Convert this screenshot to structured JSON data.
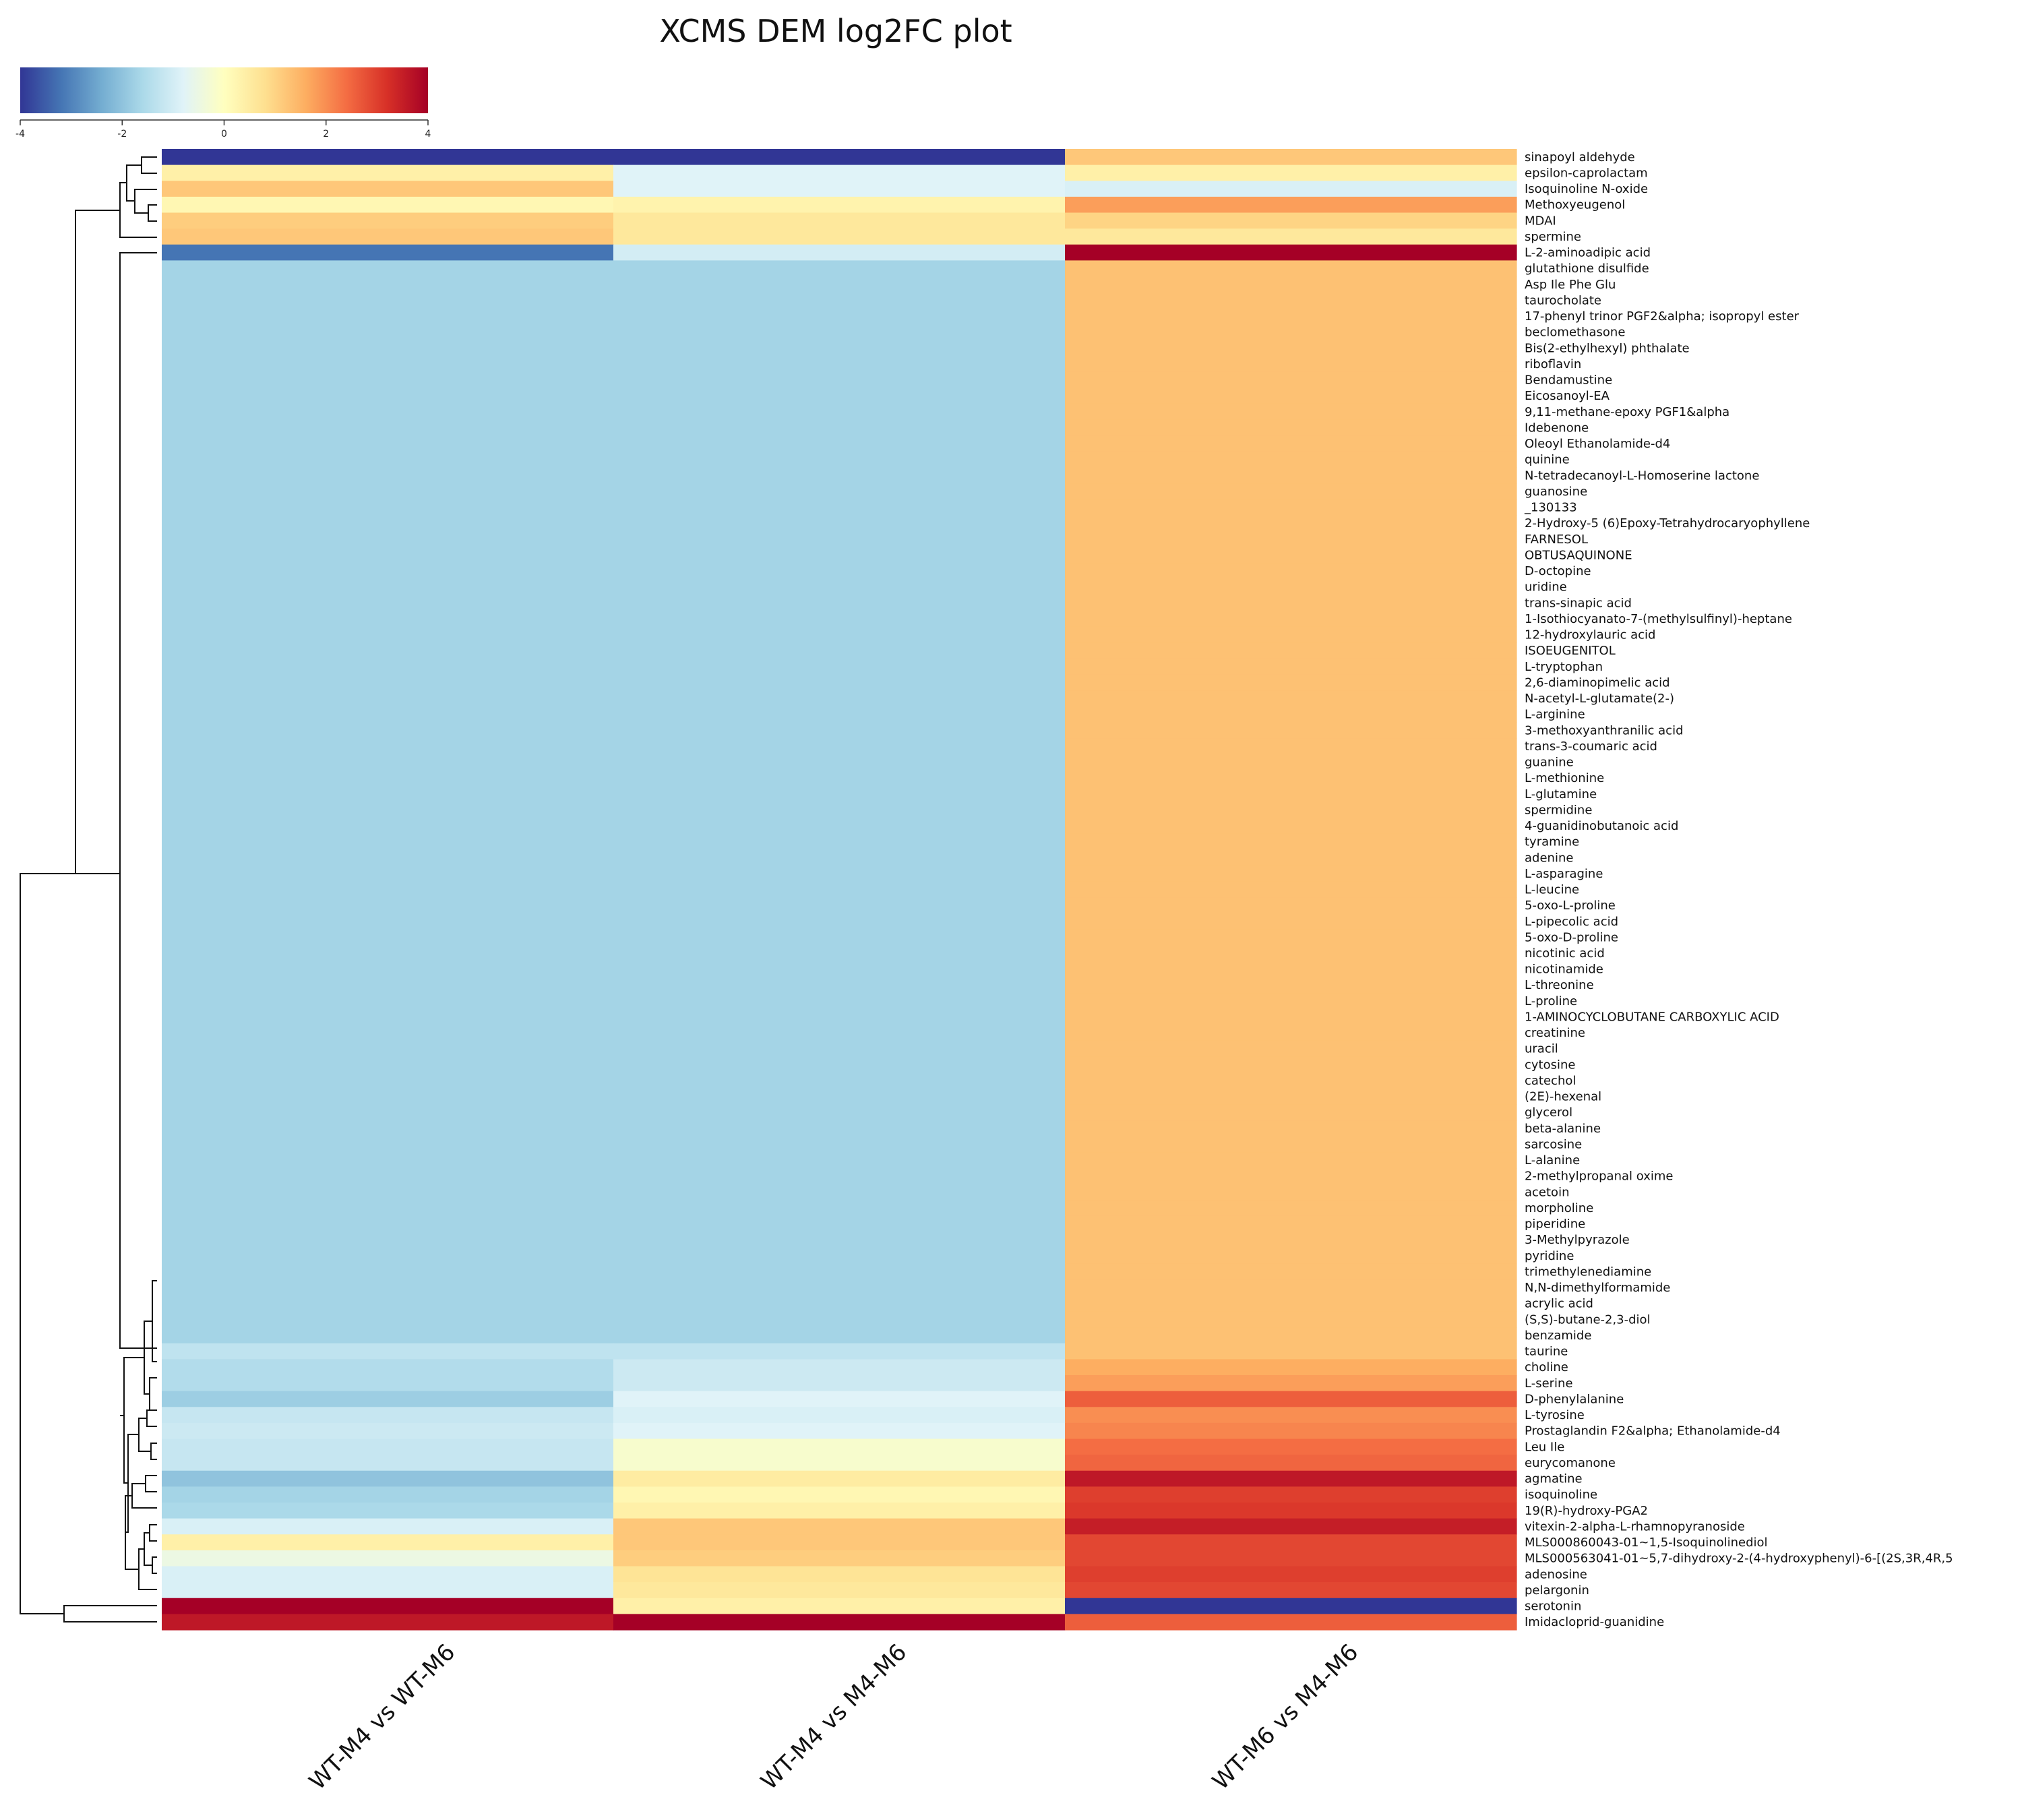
{
  "chart_data": {
    "type": "heatmap",
    "title": "XCMS DEM log2FC plot",
    "columns": [
      "WT-M4 vs WT-M6",
      "WT-M4 vs M4-M6",
      "WT-M6 vs M4-M6"
    ],
    "color_scale": {
      "min": -4,
      "max": 4,
      "ticks": [
        -4,
        -2,
        0,
        2,
        4
      ],
      "tick_labels": [
        "-4",
        "-2",
        "0",
        "2",
        "4"
      ],
      "colors": [
        "#313695",
        "#4575b4",
        "#74add1",
        "#abd9e9",
        "#e0f3f8",
        "#ffffbf",
        "#fee090",
        "#fdae61",
        "#f46d43",
        "#d73027",
        "#a50026"
      ]
    },
    "rows": [
      {
        "name": "sinapoyl aldehyde",
        "values": [
          -4,
          -4,
          1.2
        ]
      },
      {
        "name": "epsilon-caprolactam",
        "values": [
          0.4,
          -0.8,
          0.4
        ]
      },
      {
        "name": "Isoquinoline N-oxide",
        "values": [
          1.2,
          -0.8,
          -0.9
        ]
      },
      {
        "name": "Methoxyeugenol",
        "values": [
          0.2,
          0.3,
          1.8
        ]
      },
      {
        "name": "MDAI",
        "values": [
          1.1,
          0.6,
          1.0
        ]
      },
      {
        "name": "spermine",
        "values": [
          1.2,
          0.6,
          0.6
        ]
      },
      {
        "name": "L-2-aminoadipic acid",
        "values": [
          -3.2,
          -1.0,
          4.0
        ]
      },
      {
        "name": "glutathione disulfide",
        "values": [
          -1.7,
          -1.7,
          1.3
        ]
      },
      {
        "name": "Asp Ile Phe Glu",
        "values": [
          -1.7,
          -1.7,
          1.3
        ]
      },
      {
        "name": "taurocholate",
        "values": [
          -1.7,
          -1.7,
          1.3
        ]
      },
      {
        "name": "17-phenyl trinor PGF2&alpha; isopropyl ester",
        "values": [
          -1.7,
          -1.7,
          1.3
        ]
      },
      {
        "name": "beclomethasone",
        "values": [
          -1.7,
          -1.7,
          1.3
        ]
      },
      {
        "name": "Bis(2-ethylhexyl) phthalate",
        "values": [
          -1.7,
          -1.7,
          1.3
        ]
      },
      {
        "name": "riboflavin",
        "values": [
          -1.7,
          -1.7,
          1.3
        ]
      },
      {
        "name": "Bendamustine",
        "values": [
          -1.7,
          -1.7,
          1.3
        ]
      },
      {
        "name": "Eicosanoyl-EA",
        "values": [
          -1.7,
          -1.7,
          1.3
        ]
      },
      {
        "name": "9,11-methane-epoxy PGF1&alpha",
        "values": [
          -1.7,
          -1.7,
          1.3
        ]
      },
      {
        "name": "Idebenone",
        "values": [
          -1.7,
          -1.7,
          1.3
        ]
      },
      {
        "name": "Oleoyl Ethanolamide-d4",
        "values": [
          -1.7,
          -1.7,
          1.3
        ]
      },
      {
        "name": "quinine",
        "values": [
          -1.7,
          -1.7,
          1.3
        ]
      },
      {
        "name": "N-tetradecanoyl-L-Homoserine lactone",
        "values": [
          -1.7,
          -1.7,
          1.3
        ]
      },
      {
        "name": "guanosine",
        "values": [
          -1.7,
          -1.7,
          1.3
        ]
      },
      {
        "name": "_130133",
        "values": [
          -1.7,
          -1.7,
          1.3
        ]
      },
      {
        "name": "2-Hydroxy-5 (6)Epoxy-Tetrahydrocaryophyllene",
        "values": [
          -1.7,
          -1.7,
          1.3
        ]
      },
      {
        "name": "FARNESOL",
        "values": [
          -1.7,
          -1.7,
          1.3
        ]
      },
      {
        "name": "OBTUSAQUINONE",
        "values": [
          -1.7,
          -1.7,
          1.3
        ]
      },
      {
        "name": "D-octopine",
        "values": [
          -1.7,
          -1.7,
          1.3
        ]
      },
      {
        "name": "uridine",
        "values": [
          -1.7,
          -1.7,
          1.3
        ]
      },
      {
        "name": "trans-sinapic acid",
        "values": [
          -1.7,
          -1.7,
          1.3
        ]
      },
      {
        "name": "1-Isothiocyanato-7-(methylsulfinyl)-heptane",
        "values": [
          -1.7,
          -1.7,
          1.3
        ]
      },
      {
        "name": "12-hydroxylauric acid",
        "values": [
          -1.7,
          -1.7,
          1.3
        ]
      },
      {
        "name": "ISOEUGENITOL",
        "values": [
          -1.7,
          -1.7,
          1.3
        ]
      },
      {
        "name": "L-tryptophan",
        "values": [
          -1.7,
          -1.7,
          1.3
        ]
      },
      {
        "name": "2,6-diaminopimelic acid",
        "values": [
          -1.7,
          -1.7,
          1.3
        ]
      },
      {
        "name": "N-acetyl-L-glutamate(2-)",
        "values": [
          -1.7,
          -1.7,
          1.3
        ]
      },
      {
        "name": "L-arginine",
        "values": [
          -1.7,
          -1.7,
          1.3
        ]
      },
      {
        "name": "3-methoxyanthranilic acid",
        "values": [
          -1.7,
          -1.7,
          1.3
        ]
      },
      {
        "name": "trans-3-coumaric acid",
        "values": [
          -1.7,
          -1.7,
          1.3
        ]
      },
      {
        "name": "guanine",
        "values": [
          -1.7,
          -1.7,
          1.3
        ]
      },
      {
        "name": "L-methionine",
        "values": [
          -1.7,
          -1.7,
          1.3
        ]
      },
      {
        "name": "L-glutamine",
        "values": [
          -1.7,
          -1.7,
          1.3
        ]
      },
      {
        "name": "spermidine",
        "values": [
          -1.7,
          -1.7,
          1.3
        ]
      },
      {
        "name": "4-guanidinobutanoic acid",
        "values": [
          -1.7,
          -1.7,
          1.3
        ]
      },
      {
        "name": "tyramine",
        "values": [
          -1.7,
          -1.7,
          1.3
        ]
      },
      {
        "name": "adenine",
        "values": [
          -1.7,
          -1.7,
          1.3
        ]
      },
      {
        "name": "L-asparagine",
        "values": [
          -1.7,
          -1.7,
          1.3
        ]
      },
      {
        "name": "L-leucine",
        "values": [
          -1.7,
          -1.7,
          1.3
        ]
      },
      {
        "name": "5-oxo-L-proline",
        "values": [
          -1.7,
          -1.7,
          1.3
        ]
      },
      {
        "name": "L-pipecolic acid",
        "values": [
          -1.7,
          -1.7,
          1.3
        ]
      },
      {
        "name": "5-oxo-D-proline",
        "values": [
          -1.7,
          -1.7,
          1.3
        ]
      },
      {
        "name": "nicotinic acid",
        "values": [
          -1.7,
          -1.7,
          1.3
        ]
      },
      {
        "name": "nicotinamide",
        "values": [
          -1.7,
          -1.7,
          1.3
        ]
      },
      {
        "name": "L-threonine",
        "values": [
          -1.7,
          -1.7,
          1.3
        ]
      },
      {
        "name": "L-proline",
        "values": [
          -1.7,
          -1.7,
          1.3
        ]
      },
      {
        "name": "1-AMINOCYCLOBUTANE CARBOXYLIC ACID",
        "values": [
          -1.7,
          -1.7,
          1.3
        ]
      },
      {
        "name": "creatinine",
        "values": [
          -1.7,
          -1.7,
          1.3
        ]
      },
      {
        "name": "uracil",
        "values": [
          -1.7,
          -1.7,
          1.3
        ]
      },
      {
        "name": "cytosine",
        "values": [
          -1.7,
          -1.7,
          1.3
        ]
      },
      {
        "name": "catechol",
        "values": [
          -1.7,
          -1.7,
          1.3
        ]
      },
      {
        "name": "(2E)-hexenal",
        "values": [
          -1.7,
          -1.7,
          1.3
        ]
      },
      {
        "name": "glycerol",
        "values": [
          -1.7,
          -1.7,
          1.3
        ]
      },
      {
        "name": "beta-alanine",
        "values": [
          -1.7,
          -1.7,
          1.3
        ]
      },
      {
        "name": "sarcosine",
        "values": [
          -1.7,
          -1.7,
          1.3
        ]
      },
      {
        "name": "L-alanine",
        "values": [
          -1.7,
          -1.7,
          1.3
        ]
      },
      {
        "name": "2-methylpropanal oxime",
        "values": [
          -1.7,
          -1.7,
          1.3
        ]
      },
      {
        "name": "acetoin",
        "values": [
          -1.7,
          -1.7,
          1.3
        ]
      },
      {
        "name": "morpholine",
        "values": [
          -1.7,
          -1.7,
          1.3
        ]
      },
      {
        "name": "piperidine",
        "values": [
          -1.7,
          -1.7,
          1.3
        ]
      },
      {
        "name": "3-Methylpyrazole",
        "values": [
          -1.7,
          -1.7,
          1.3
        ]
      },
      {
        "name": "pyridine",
        "values": [
          -1.7,
          -1.7,
          1.3
        ]
      },
      {
        "name": "trimethylenediamine",
        "values": [
          -1.7,
          -1.7,
          1.3
        ]
      },
      {
        "name": "N,N-dimethylformamide",
        "values": [
          -1.7,
          -1.7,
          1.3
        ]
      },
      {
        "name": "acrylic acid",
        "values": [
          -1.7,
          -1.7,
          1.3
        ]
      },
      {
        "name": "(S,S)-butane-2,3-diol",
        "values": [
          -1.7,
          -1.7,
          1.3
        ]
      },
      {
        "name": "benzamide",
        "values": [
          -1.7,
          -1.7,
          1.3
        ]
      },
      {
        "name": "taurine",
        "values": [
          -1.3,
          -1.3,
          1.3
        ]
      },
      {
        "name": "choline",
        "values": [
          -1.5,
          -1.1,
          1.6
        ]
      },
      {
        "name": "L-serine",
        "values": [
          -1.5,
          -1.1,
          1.8
        ]
      },
      {
        "name": "D-phenylalanine",
        "values": [
          -1.8,
          -0.8,
          2.6
        ]
      },
      {
        "name": "L-tyrosine",
        "values": [
          -1.2,
          -0.9,
          2.0
        ]
      },
      {
        "name": "Prostaglandin F2&alpha; Ethanolamide-d4",
        "values": [
          -1.1,
          -0.8,
          2.1
        ]
      },
      {
        "name": "Leu Ile",
        "values": [
          -1.2,
          -0.2,
          2.4
        ]
      },
      {
        "name": "eurycomanone",
        "values": [
          -1.2,
          -0.2,
          2.5
        ]
      },
      {
        "name": "agmatine",
        "values": [
          -2.0,
          0.5,
          3.6
        ]
      },
      {
        "name": "isoquinoline",
        "values": [
          -1.7,
          0.2,
          3.0
        ]
      },
      {
        "name": "19(R)-hydroxy-PGA2",
        "values": [
          -1.6,
          0.4,
          3.1
        ]
      },
      {
        "name": "vitexin-2-alpha-L-rhamnopyranoside",
        "values": [
          -0.9,
          1.2,
          3.5
        ]
      },
      {
        "name": "MLS000860043-01~1,5-Isoquinolinediol",
        "values": [
          0.4,
          1.2,
          2.9
        ]
      },
      {
        "name": "MLS000563041-01~5,7-dihydroxy-2-(4-hydroxyphenyl)-6-[(2S,3R,4R,5",
        "values": [
          -0.5,
          1.1,
          2.9
        ]
      },
      {
        "name": "adenosine",
        "values": [
          -0.9,
          0.7,
          3.0
        ]
      },
      {
        "name": "pelargonin",
        "values": [
          -0.9,
          0.6,
          2.9
        ]
      },
      {
        "name": "serotonin",
        "values": [
          4.0,
          0.4,
          -4.0
        ]
      },
      {
        "name": "Imidacloprid-guanidine",
        "values": [
          3.6,
          4.0,
          2.6
        ]
      }
    ]
  }
}
